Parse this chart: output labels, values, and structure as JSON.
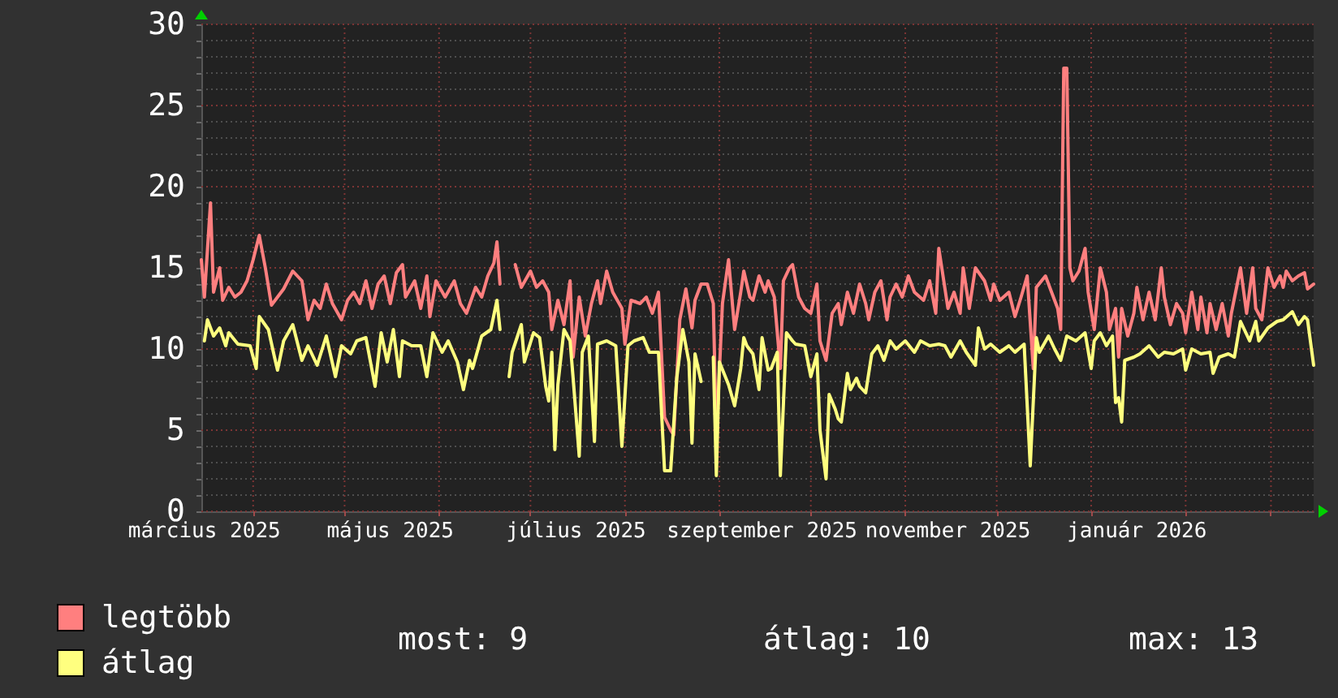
{
  "chart_data": {
    "type": "line",
    "xlim": [
      "2025-03-15",
      "2026-03-15"
    ],
    "xticks": [
      {
        "value": "2025-03-16",
        "label": "március 2025"
      },
      {
        "value": "2025-04-01",
        "label": null
      },
      {
        "value": "2025-05-01",
        "label": null
      },
      {
        "value": "2025-05-16",
        "label": "május 2025"
      },
      {
        "value": "2025-06-01",
        "label": null
      },
      {
        "value": "2025-07-01",
        "label": null
      },
      {
        "value": "2025-07-16",
        "label": "július 2025"
      },
      {
        "value": "2025-08-01",
        "label": null
      },
      {
        "value": "2025-09-01",
        "label": null
      },
      {
        "value": "2025-09-15",
        "label": "szeptember 2025"
      },
      {
        "value": "2025-10-01",
        "label": null
      },
      {
        "value": "2025-11-01",
        "label": null
      },
      {
        "value": "2025-11-15",
        "label": "november 2025"
      },
      {
        "value": "2025-12-01",
        "label": null
      },
      {
        "value": "2026-01-01",
        "label": null
      },
      {
        "value": "2026-01-16",
        "label": "január 2026"
      },
      {
        "value": "2026-02-01",
        "label": null
      },
      {
        "value": "2026-03-01",
        "label": null
      }
    ],
    "ylim": [
      0,
      30
    ],
    "yticks": [
      0,
      {
        "value": 1,
        "label": null
      },
      {
        "value": 2,
        "label": null
      },
      {
        "value": 3,
        "label": null
      },
      {
        "value": 4,
        "label": null
      },
      5,
      {
        "value": 6,
        "label": null
      },
      {
        "value": 7,
        "label": null
      },
      {
        "value": 8,
        "label": null
      },
      {
        "value": 9,
        "label": null
      },
      10,
      {
        "value": 11,
        "label": null
      },
      {
        "value": 12,
        "label": null
      },
      {
        "value": 13,
        "label": null
      },
      {
        "value": 14,
        "label": null
      },
      15,
      {
        "value": 16,
        "label": null
      },
      {
        "value": 17,
        "label": null
      },
      {
        "value": 18,
        "label": null
      },
      {
        "value": 19,
        "label": null
      },
      20,
      {
        "value": 21,
        "label": null
      },
      {
        "value": 22,
        "label": null
      },
      {
        "value": 23,
        "label": null
      },
      {
        "value": 24,
        "label": null
      },
      25,
      {
        "value": 26,
        "label": null
      },
      {
        "value": 27,
        "label": null
      },
      {
        "value": 28,
        "label": null
      },
      {
        "value": 29,
        "label": null
      },
      30
    ],
    "grid": true,
    "legend": "bottom left",
    "marker": "none",
    "annotations": [
      "most: 9",
      "átlag: 10",
      "max: 13"
    ],
    "series": [
      {
        "name": "legtöbb",
        "color": "#ff7f7f",
        "x": [
          "2025-03-15",
          "2025-03-16",
          "2025-03-18",
          "2025-03-19",
          "2025-03-21",
          "2025-03-22",
          "2025-03-24",
          "2025-03-26",
          "2025-03-28",
          "2025-03-30",
          "2025-04-01",
          "2025-04-03",
          "2025-04-05",
          "2025-04-07",
          "2025-04-09",
          "2025-04-11",
          "2025-04-14",
          "2025-04-17",
          "2025-04-19",
          "2025-04-21",
          "2025-04-23",
          "2025-04-25",
          "2025-04-27",
          "2025-04-30",
          "2025-05-02",
          "2025-05-04",
          "2025-05-06",
          "2025-05-08",
          "2025-05-10",
          "2025-05-12",
          "2025-05-14",
          "2025-05-16",
          "2025-05-18",
          "2025-05-20",
          "2025-05-21",
          "2025-05-24",
          "2025-05-26",
          "2025-05-28",
          "2025-05-29",
          "2025-05-31",
          "2025-06-03",
          "2025-06-06",
          "2025-06-08",
          "2025-06-10",
          "2025-06-13",
          "2025-06-15",
          "2025-06-17",
          "2025-06-19",
          "2025-06-20",
          "2025-06-21",
          "2025-06-23",
          "2025-06-26",
          "2025-06-28",
          "2025-07-01",
          "2025-07-03",
          "2025-07-05",
          "2025-07-07",
          "2025-07-08",
          "2025-07-10",
          "2025-07-12",
          "2025-07-14",
          "2025-07-15",
          "2025-07-17",
          "2025-07-19",
          "2025-07-21",
          "2025-07-23",
          "2025-07-24",
          "2025-07-26",
          "2025-07-28",
          "2025-07-31",
          "2025-08-01",
          "2025-08-03",
          "2025-08-06",
          "2025-08-08",
          "2025-08-10",
          "2025-08-12",
          "2025-08-14",
          "2025-08-16",
          "2025-08-17",
          "2025-08-19",
          "2025-08-21",
          "2025-08-23",
          "2025-08-24",
          "2025-08-26",
          "2025-08-28",
          "2025-08-30",
          "2025-08-31",
          "2025-09-02",
          "2025-09-04",
          "2025-09-06",
          "2025-09-08",
          "2025-09-09",
          "2025-09-11",
          "2025-09-12",
          "2025-09-14",
          "2025-09-16",
          "2025-09-17",
          "2025-09-19",
          "2025-09-21",
          "2025-09-22",
          "2025-09-24",
          "2025-09-25",
          "2025-09-27",
          "2025-09-29",
          "2025-10-01",
          "2025-10-03",
          "2025-10-04",
          "2025-10-06",
          "2025-10-08",
          "2025-10-10",
          "2025-10-11",
          "2025-10-13",
          "2025-10-15",
          "2025-10-17",
          "2025-10-19",
          "2025-10-20",
          "2025-10-22",
          "2025-10-24",
          "2025-10-26",
          "2025-10-27",
          "2025-10-29",
          "2025-10-31",
          "2025-11-02",
          "2025-11-04",
          "2025-11-07",
          "2025-11-09",
          "2025-11-11",
          "2025-11-12",
          "2025-11-15",
          "2025-11-17",
          "2025-11-19",
          "2025-11-20",
          "2025-11-22",
          "2025-11-24",
          "2025-11-27",
          "2025-11-29",
          "2025-11-30",
          "2025-12-02",
          "2025-12-05",
          "2025-12-07",
          "2025-12-09",
          "2025-12-11",
          "2025-12-13",
          "2025-12-14",
          "2025-12-17",
          "2025-12-19",
          "2025-12-21",
          "2025-12-22",
          "2025-12-23",
          "2025-12-24",
          "2025-12-25",
          "2025-12-26",
          "2025-12-28",
          "2025-12-30",
          "2025-12-31",
          "2026-01-02",
          "2026-01-04",
          "2026-01-06",
          "2026-01-07",
          "2026-01-09",
          "2026-01-10",
          "2026-01-11",
          "2026-01-13",
          "2026-01-15",
          "2026-01-16",
          "2026-01-18",
          "2026-01-20",
          "2026-01-22",
          "2026-01-24",
          "2026-01-25",
          "2026-01-27",
          "2026-01-29",
          "2026-01-31",
          "2026-02-01",
          "2026-02-03",
          "2026-02-05",
          "2026-02-06",
          "2026-02-08",
          "2026-02-09",
          "2026-02-11",
          "2026-02-13",
          "2026-02-15",
          "2026-02-16",
          "2026-02-19",
          "2026-02-21",
          "2026-02-23",
          "2026-02-24",
          "2026-02-26",
          "2026-02-28",
          "2026-03-02",
          "2026-03-04",
          "2026-03-05",
          "2026-03-06",
          "2026-03-08",
          "2026-03-10",
          "2026-03-12",
          "2026-03-13",
          "2026-03-15"
        ],
        "values": [
          15.5,
          13.2,
          19,
          13.5,
          15,
          13,
          13.8,
          13.2,
          13.5,
          14.2,
          15.5,
          17,
          15,
          12.7,
          13.2,
          13.7,
          14.8,
          14.2,
          11.8,
          13,
          12.5,
          14,
          12.8,
          11.8,
          13,
          13.5,
          12.8,
          14.2,
          12.5,
          14,
          14.5,
          12.8,
          14.7,
          15.2,
          13.2,
          14.2,
          12.5,
          14.5,
          12,
          14.2,
          13.2,
          14.2,
          12.8,
          12.2,
          13.8,
          13.2,
          14.5,
          15.3,
          16.6,
          14,
          null,
          15.2,
          13.8,
          14.8,
          13.8,
          14.2,
          13.5,
          11.2,
          13,
          11.5,
          14.2,
          9.5,
          13.2,
          10.8,
          12.8,
          14.2,
          12.8,
          14.8,
          13.5,
          12.5,
          10.3,
          13,
          12.8,
          13.2,
          12.2,
          13.5,
          5.8,
          5,
          4.7,
          11.8,
          13.7,
          11.3,
          13,
          14,
          14,
          12.8,
          4.5,
          12.8,
          15.5,
          11.2,
          13.5,
          14.8,
          13.2,
          13,
          14.5,
          13.5,
          14.2,
          13.2,
          8.8,
          14.2,
          15,
          15.2,
          13.2,
          12.5,
          12.2,
          14,
          10.5,
          9.3,
          12.2,
          12.8,
          11.5,
          13.5,
          12.2,
          14,
          12.8,
          11.8,
          13.5,
          14.2,
          11.8,
          13.2,
          14,
          13.2,
          14.5,
          13.5,
          13,
          14.2,
          12.2,
          16.2,
          12.5,
          13.5,
          12.2,
          15,
          12.5,
          15,
          14.2,
          13,
          14,
          13,
          13.5,
          12,
          13.2,
          14.5,
          8.8,
          13.8,
          14.5,
          13.5,
          12.5,
          11.2,
          27.3,
          27.3,
          15,
          14.2,
          14.8,
          16.2,
          13.5,
          11.2,
          15,
          13.5,
          11.2,
          12.5,
          9.5,
          12.5,
          10.8,
          12.2,
          13.8,
          11.8,
          13.5,
          11.8,
          15,
          13.2,
          11.5,
          12.8,
          12.2,
          11,
          13.5,
          11.2,
          13.2,
          11,
          12.8,
          11.2,
          12.8,
          10.8,
          12.2,
          15,
          12.2,
          15,
          12.5,
          11.8,
          15,
          13.8,
          14.5,
          13.8,
          14.8,
          14.2,
          14.5,
          14.7,
          13.7,
          14
        ]
      },
      {
        "name": "átlag",
        "color": "#ffff7f",
        "x": [
          "2025-03-16",
          "2025-03-17",
          "2025-03-19",
          "2025-03-21",
          "2025-03-23",
          "2025-03-24",
          "2025-03-27",
          "2025-03-31",
          "2025-04-02",
          "2025-04-03",
          "2025-04-06",
          "2025-04-08",
          "2025-04-09",
          "2025-04-11",
          "2025-04-14",
          "2025-04-17",
          "2025-04-19",
          "2025-04-22",
          "2025-04-25",
          "2025-04-28",
          "2025-04-30",
          "2025-05-03",
          "2025-05-05",
          "2025-05-08",
          "2025-05-11",
          "2025-05-13",
          "2025-05-15",
          "2025-05-17",
          "2025-05-19",
          "2025-05-20",
          "2025-05-23",
          "2025-05-26",
          "2025-05-28",
          "2025-05-30",
          "2025-06-02",
          "2025-06-04",
          "2025-06-07",
          "2025-06-09",
          "2025-06-11",
          "2025-06-12",
          "2025-06-15",
          "2025-06-18",
          "2025-06-20",
          "2025-06-21",
          "2025-06-22",
          "2025-06-24",
          "2025-06-25",
          "2025-06-28",
          "2025-06-29",
          "2025-07-02",
          "2025-07-04",
          "2025-07-06",
          "2025-07-07",
          "2025-07-08",
          "2025-07-09",
          "2025-07-10",
          "2025-07-12",
          "2025-07-14",
          "2025-07-15",
          "2025-07-17",
          "2025-07-18",
          "2025-07-20",
          "2025-07-22",
          "2025-07-23",
          "2025-07-26",
          "2025-07-29",
          "2025-07-31",
          "2025-08-02",
          "2025-08-04",
          "2025-08-07",
          "2025-08-09",
          "2025-08-12",
          "2025-08-14",
          "2025-08-16",
          "2025-08-18",
          "2025-08-20",
          "2025-08-22",
          "2025-08-23",
          "2025-08-24",
          "2025-08-26",
          "2025-08-28",
          "2025-08-30",
          "2025-08-31",
          "2025-09-01",
          "2025-09-04",
          "2025-09-06",
          "2025-09-08",
          "2025-09-09",
          "2025-09-10",
          "2025-09-12",
          "2025-09-14",
          "2025-09-15",
          "2025-09-17",
          "2025-09-18",
          "2025-09-20",
          "2025-09-21",
          "2025-09-23",
          "2025-09-25",
          "2025-09-26",
          "2025-09-29",
          "2025-10-01",
          "2025-10-03",
          "2025-10-04",
          "2025-10-06",
          "2025-10-07",
          "2025-10-09",
          "2025-10-10",
          "2025-10-11",
          "2025-10-13",
          "2025-10-14",
          "2025-10-16",
          "2025-10-17",
          "2025-10-19",
          "2025-10-21",
          "2025-10-23",
          "2025-10-25",
          "2025-10-27",
          "2025-10-29",
          "2025-11-01",
          "2025-11-04",
          "2025-11-06",
          "2025-11-09",
          "2025-11-12",
          "2025-11-14",
          "2025-11-16",
          "2025-11-19",
          "2025-11-21",
          "2025-11-24",
          "2025-11-25",
          "2025-11-27",
          "2025-11-29",
          "2025-12-02",
          "2025-12-05",
          "2025-12-07",
          "2025-12-10",
          "2025-12-12",
          "2025-12-14",
          "2025-12-15",
          "2025-12-18",
          "2025-12-20",
          "2025-12-22",
          "2025-12-24",
          "2025-12-27",
          "2025-12-30",
          "2026-01-01",
          "2026-01-02",
          "2026-01-04",
          "2026-01-06",
          "2026-01-08",
          "2026-01-09",
          "2026-01-10",
          "2026-01-11",
          "2026-01-12",
          "2026-01-15",
          "2026-01-17",
          "2026-01-20",
          "2026-01-23",
          "2026-01-25",
          "2026-01-28",
          "2026-01-31",
          "2026-02-01",
          "2026-02-03",
          "2026-02-06",
          "2026-02-09",
          "2026-02-10",
          "2026-02-12",
          "2026-02-15",
          "2026-02-17",
          "2026-02-19",
          "2026-02-22",
          "2026-02-24",
          "2026-02-25",
          "2026-02-28",
          "2026-03-03",
          "2026-03-05",
          "2026-03-08",
          "2026-03-10",
          "2026-03-12",
          "2026-03-13",
          "2026-03-15"
        ],
        "values": [
          10.5,
          11.8,
          10.8,
          11.3,
          10.2,
          11,
          10.3,
          10.2,
          8.8,
          12,
          11.2,
          9.5,
          8.7,
          10.5,
          11.5,
          9.3,
          10.2,
          9,
          10.8,
          8.3,
          10.2,
          9.7,
          10.5,
          10.7,
          7.7,
          11,
          9.2,
          11.2,
          8.3,
          10.5,
          10.2,
          10.2,
          8.3,
          11,
          9.8,
          10.5,
          9.2,
          7.5,
          9.3,
          8.8,
          10.8,
          11.2,
          13,
          11.2,
          null,
          8.3,
          9.8,
          11.5,
          9.2,
          11,
          10.7,
          7.7,
          6.8,
          9.8,
          3.8,
          7.8,
          11.2,
          10.5,
          8.2,
          3.4,
          9.8,
          10.8,
          4.3,
          10.3,
          10.5,
          10.2,
          4,
          10.2,
          10.5,
          10.7,
          9.8,
          9.8,
          2.5,
          2.5,
          8.2,
          11.2,
          9.2,
          4.2,
          9.7,
          8,
          null,
          9.5,
          2.2,
          9.2,
          7.8,
          6.5,
          8.8,
          10.7,
          10.2,
          9.7,
          7.5,
          10.7,
          8.7,
          8.8,
          9.8,
          2.2,
          11,
          10.5,
          10.3,
          10.2,
          8.3,
          9.7,
          5,
          2,
          7.2,
          6.3,
          5.7,
          5.5,
          8.5,
          7.5,
          8.2,
          7.7,
          7.3,
          9.7,
          10.2,
          9.3,
          10.5,
          10,
          10.5,
          9.8,
          10.5,
          10.2,
          10.3,
          10.2,
          9.5,
          10.5,
          9.8,
          9,
          11.3,
          10,
          10.3,
          9.8,
          10.2,
          9.8,
          10.3,
          2.8,
          10.7,
          9.8,
          10.8,
          10,
          9.3,
          10.8,
          10.5,
          11,
          8.8,
          10.5,
          11,
          10.2,
          10.8,
          6.7,
          7,
          5.5,
          9.3,
          9.5,
          9.7,
          10.2,
          9.5,
          9.8,
          9.7,
          10,
          8.7,
          10,
          9.7,
          9.8,
          8.5,
          9.5,
          9.7,
          9.5,
          11.7,
          10.5,
          11.7,
          10.5,
          11.3,
          11.7,
          11.8,
          12.3,
          11.5,
          12,
          11.8,
          9
        ]
      }
    ]
  }
}
